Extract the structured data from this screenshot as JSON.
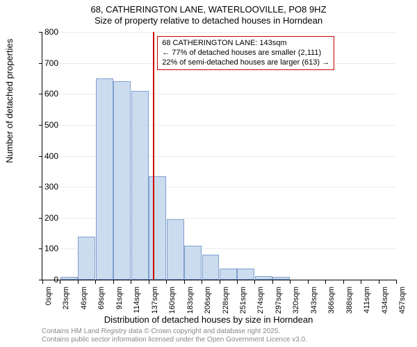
{
  "title_line1": "68, CATHERINGTON LANE, WATERLOOVILLE, PO8 9HZ",
  "title_line2": "Size of property relative to detached houses in Horndean",
  "ylabel": "Number of detached properties",
  "xlabel": "Distribution of detached houses by size in Horndean",
  "footer_line1": "Contains HM Land Registry data © Crown copyright and database right 2025.",
  "footer_line2": "Contains public sector information licensed under the Open Government Licence v3.0.",
  "chart": {
    "type": "histogram",
    "background_color": "#ffffff",
    "bar_fill": "#cbdcef",
    "bar_border": "#7f9fcf",
    "marker_color": "#cc0000",
    "callout_border": "#cc0000",
    "ylim": [
      0,
      800
    ],
    "ytick_step": 100,
    "bin_width_sqm": 22.857,
    "x_categories": [
      "0sqm",
      "23sqm",
      "46sqm",
      "69sqm",
      "91sqm",
      "114sqm",
      "137sqm",
      "160sqm",
      "183sqm",
      "206sqm",
      "228sqm",
      "251sqm",
      "274sqm",
      "297sqm",
      "320sqm",
      "343sqm",
      "366sqm",
      "388sqm",
      "411sqm",
      "434sqm",
      "457sqm"
    ],
    "values": [
      0,
      8,
      140,
      650,
      640,
      610,
      335,
      195,
      110,
      80,
      35,
      35,
      12,
      8,
      0,
      0,
      0,
      0,
      0,
      0
    ],
    "marker_value_sqm": 143,
    "callout_line1": "68 CATHERINGTON LANE: 143sqm",
    "callout_line2": "← 77% of detached houses are smaller (2,111)",
    "callout_line3": "22% of semi-detached houses are larger (613) →"
  }
}
